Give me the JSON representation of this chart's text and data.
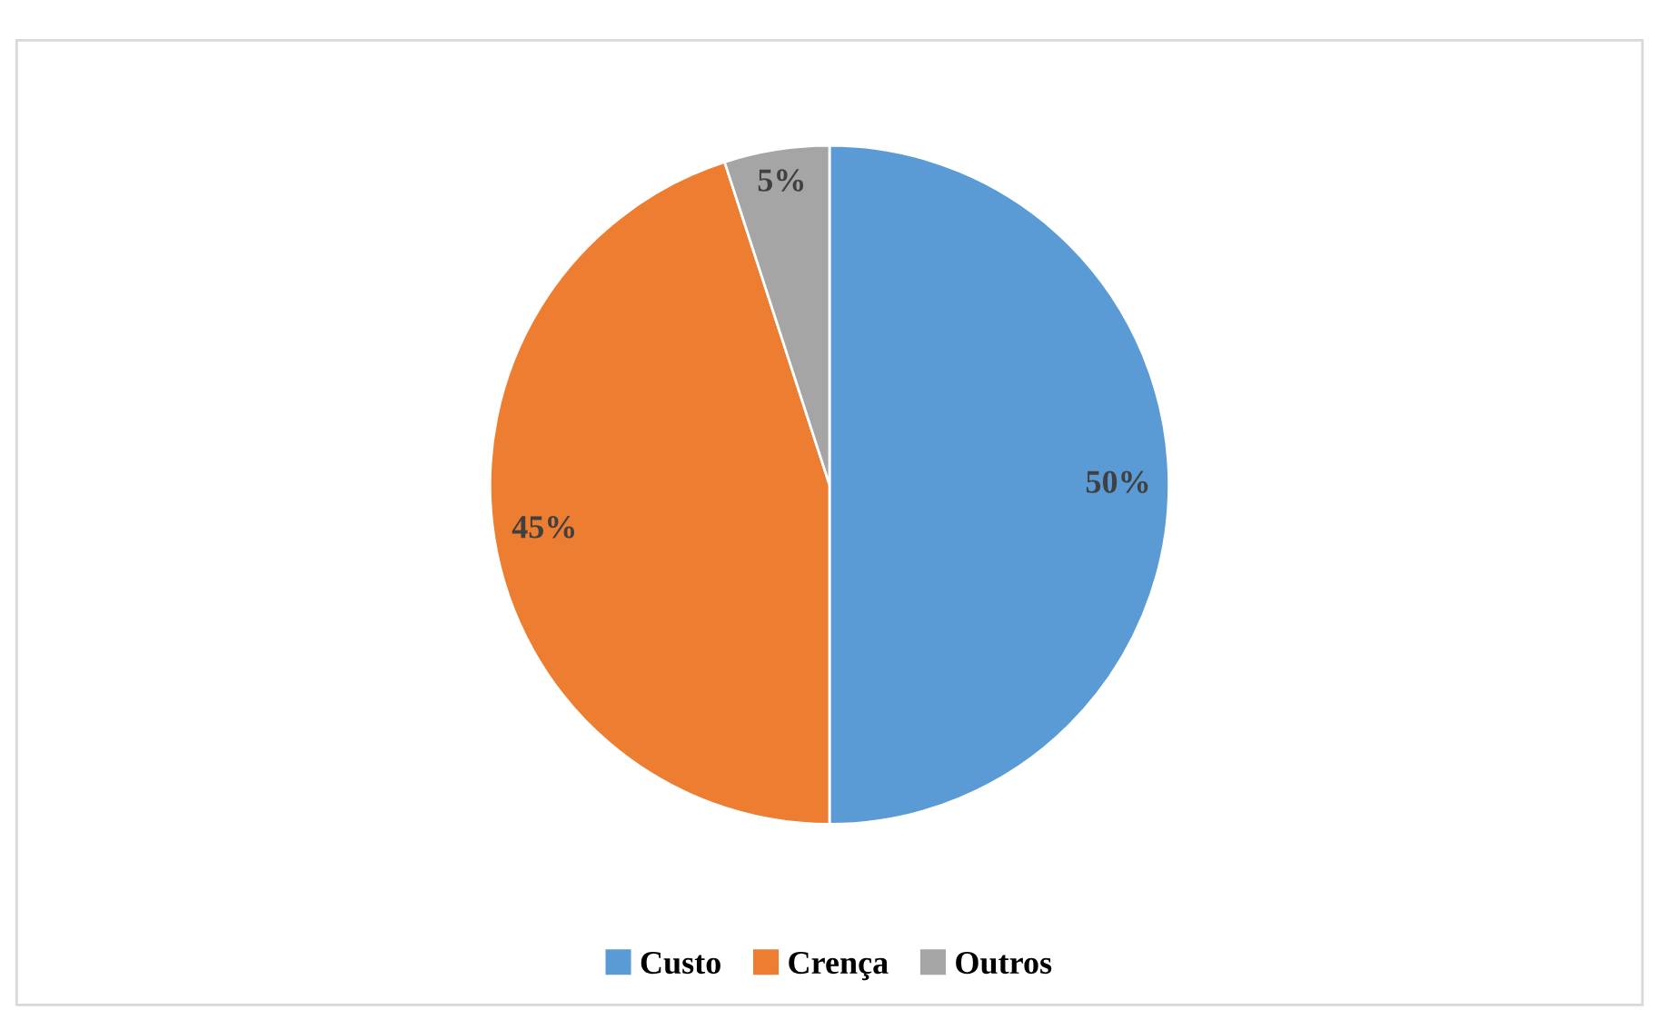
{
  "chart_data": {
    "type": "pie",
    "categories": [
      "Custo",
      "Crença",
      "Outros"
    ],
    "values": [
      50,
      45,
      5
    ],
    "colors": [
      "#5b9bd5",
      "#ed7d31",
      "#a5a5a5"
    ],
    "value_labels": [
      "50%",
      "45%",
      "5%"
    ],
    "legend": "bottom"
  }
}
